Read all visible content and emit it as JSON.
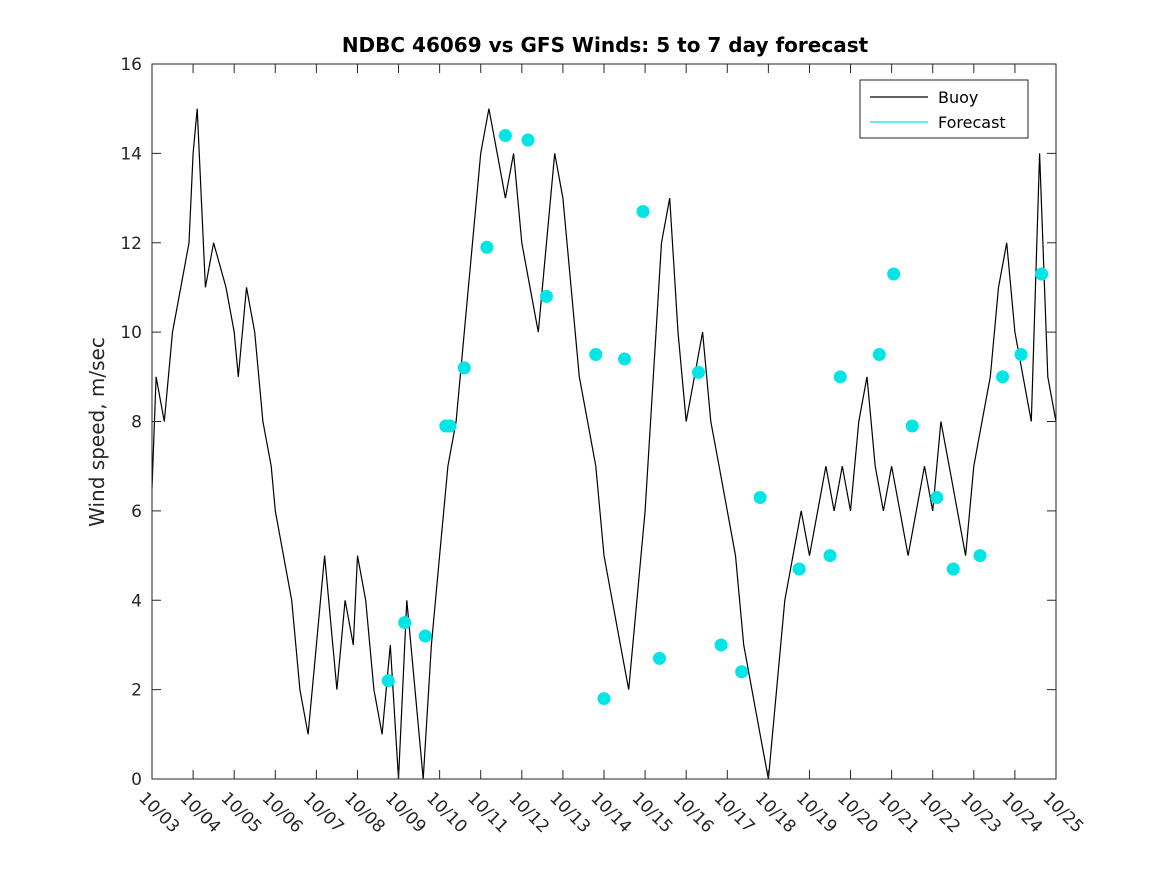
{
  "chart_data": {
    "type": "line",
    "title": "NDBC 46069 vs GFS Winds: 5 to 7 day forecast",
    "xlabel": "",
    "ylabel": "Wind speed, m/sec",
    "x_ticks": [
      "10/03",
      "10/04",
      "10/05",
      "10/06",
      "10/07",
      "10/08",
      "10/09",
      "10/10",
      "10/11",
      "10/12",
      "10/13",
      "10/14",
      "10/15",
      "10/16",
      "10/17",
      "10/18",
      "10/19",
      "10/20",
      "10/21",
      "10/22",
      "10/23",
      "10/24",
      "10/25"
    ],
    "x_range_days": [
      0,
      22
    ],
    "ylim": [
      0,
      16
    ],
    "y_ticks": [
      0,
      2,
      4,
      6,
      8,
      10,
      12,
      14,
      16
    ],
    "legend": {
      "position": "top-right",
      "entries": [
        {
          "name": "Buoy",
          "color": "#000000"
        },
        {
          "name": "Forecast",
          "color": "#00e5e5"
        }
      ]
    },
    "series": [
      {
        "name": "Buoy",
        "color": "#000000",
        "x": [
          0,
          0.1,
          0.3,
          0.5,
          0.7,
          0.9,
          1.0,
          1.1,
          1.2,
          1.3,
          1.5,
          1.8,
          2.0,
          2.1,
          2.3,
          2.5,
          2.7,
          2.9,
          3.0,
          3.2,
          3.4,
          3.6,
          3.8,
          4.0,
          4.2,
          4.4,
          4.5,
          4.7,
          4.9,
          5.0,
          5.2,
          5.4,
          5.6,
          5.8,
          6.0,
          6.2,
          6.4,
          6.6,
          6.8,
          7.0,
          7.2,
          7.4,
          7.6,
          7.8,
          8.0,
          8.2,
          8.4,
          8.6,
          8.8,
          9.0,
          9.2,
          9.4,
          9.6,
          9.8,
          10.0,
          10.2,
          10.4,
          10.6,
          10.8,
          11.0,
          11.2,
          11.4,
          11.6,
          11.8,
          12.0,
          12.2,
          12.4,
          12.6,
          12.8,
          13.0,
          13.2,
          13.4,
          13.6,
          13.8,
          14.0,
          14.2,
          14.4,
          14.6,
          14.8,
          15.0,
          15.2,
          15.4,
          15.6,
          15.8,
          16.0,
          16.2,
          16.4,
          16.6,
          16.8,
          17.0,
          17.2,
          17.4,
          17.6,
          17.8,
          18.0,
          18.2,
          18.4,
          18.6,
          18.8,
          19.0,
          19.2,
          19.4,
          19.6,
          19.8,
          20.0,
          20.2,
          20.4,
          20.6,
          20.8,
          21.0,
          21.2,
          21.4,
          21.6,
          21.8,
          22.0
        ],
        "values": [
          6.5,
          9,
          8,
          10,
          11,
          12,
          14,
          15,
          13,
          11,
          12,
          11,
          10,
          9,
          11,
          10,
          8,
          7,
          6,
          5,
          4,
          2,
          1,
          3,
          5,
          3,
          2,
          4,
          3,
          5,
          4,
          2,
          1,
          3,
          0,
          4,
          2,
          0,
          3,
          5,
          7,
          8,
          10,
          12,
          14,
          15,
          14,
          13,
          14,
          12,
          11,
          10,
          12,
          14,
          13,
          11,
          9,
          8,
          7,
          5,
          4,
          3,
          2,
          4,
          6,
          9,
          12,
          13,
          10,
          8,
          9,
          10,
          8,
          7,
          6,
          5,
          3,
          2,
          1,
          0,
          2,
          4,
          5,
          6,
          5,
          6,
          7,
          6,
          7,
          6,
          8,
          9,
          7,
          6,
          7,
          6,
          5,
          6,
          7,
          6,
          8,
          7,
          6,
          5,
          7,
          8,
          9,
          11,
          12,
          10,
          9,
          8,
          14,
          9,
          8
        ]
      },
      {
        "name": "Forecast",
        "color": "#00e5e5",
        "points_x": [
          5.75,
          6.15,
          6.65,
          7.15,
          7.25,
          7.6,
          8.15,
          8.6,
          9.15,
          9.6,
          10.8,
          11.0,
          11.5,
          11.95,
          12.35,
          13.3,
          13.85,
          14.35,
          14.8,
          15.75,
          16.5,
          16.75,
          17.7,
          18.05,
          18.5,
          19.1,
          19.5,
          20.15,
          20.7,
          21.15,
          21.65
        ],
        "points_values": [
          2.2,
          3.5,
          3.2,
          7.9,
          7.9,
          9.2,
          11.9,
          14.4,
          14.3,
          10.8,
          9.5,
          1.8,
          9.4,
          12.7,
          2.7,
          9.1,
          3.0,
          2.4,
          6.3,
          4.7,
          5.0,
          9.0,
          9.5,
          11.3,
          7.9,
          6.3,
          4.7,
          5.0,
          9.0,
          9.5,
          11.3
        ]
      }
    ]
  }
}
